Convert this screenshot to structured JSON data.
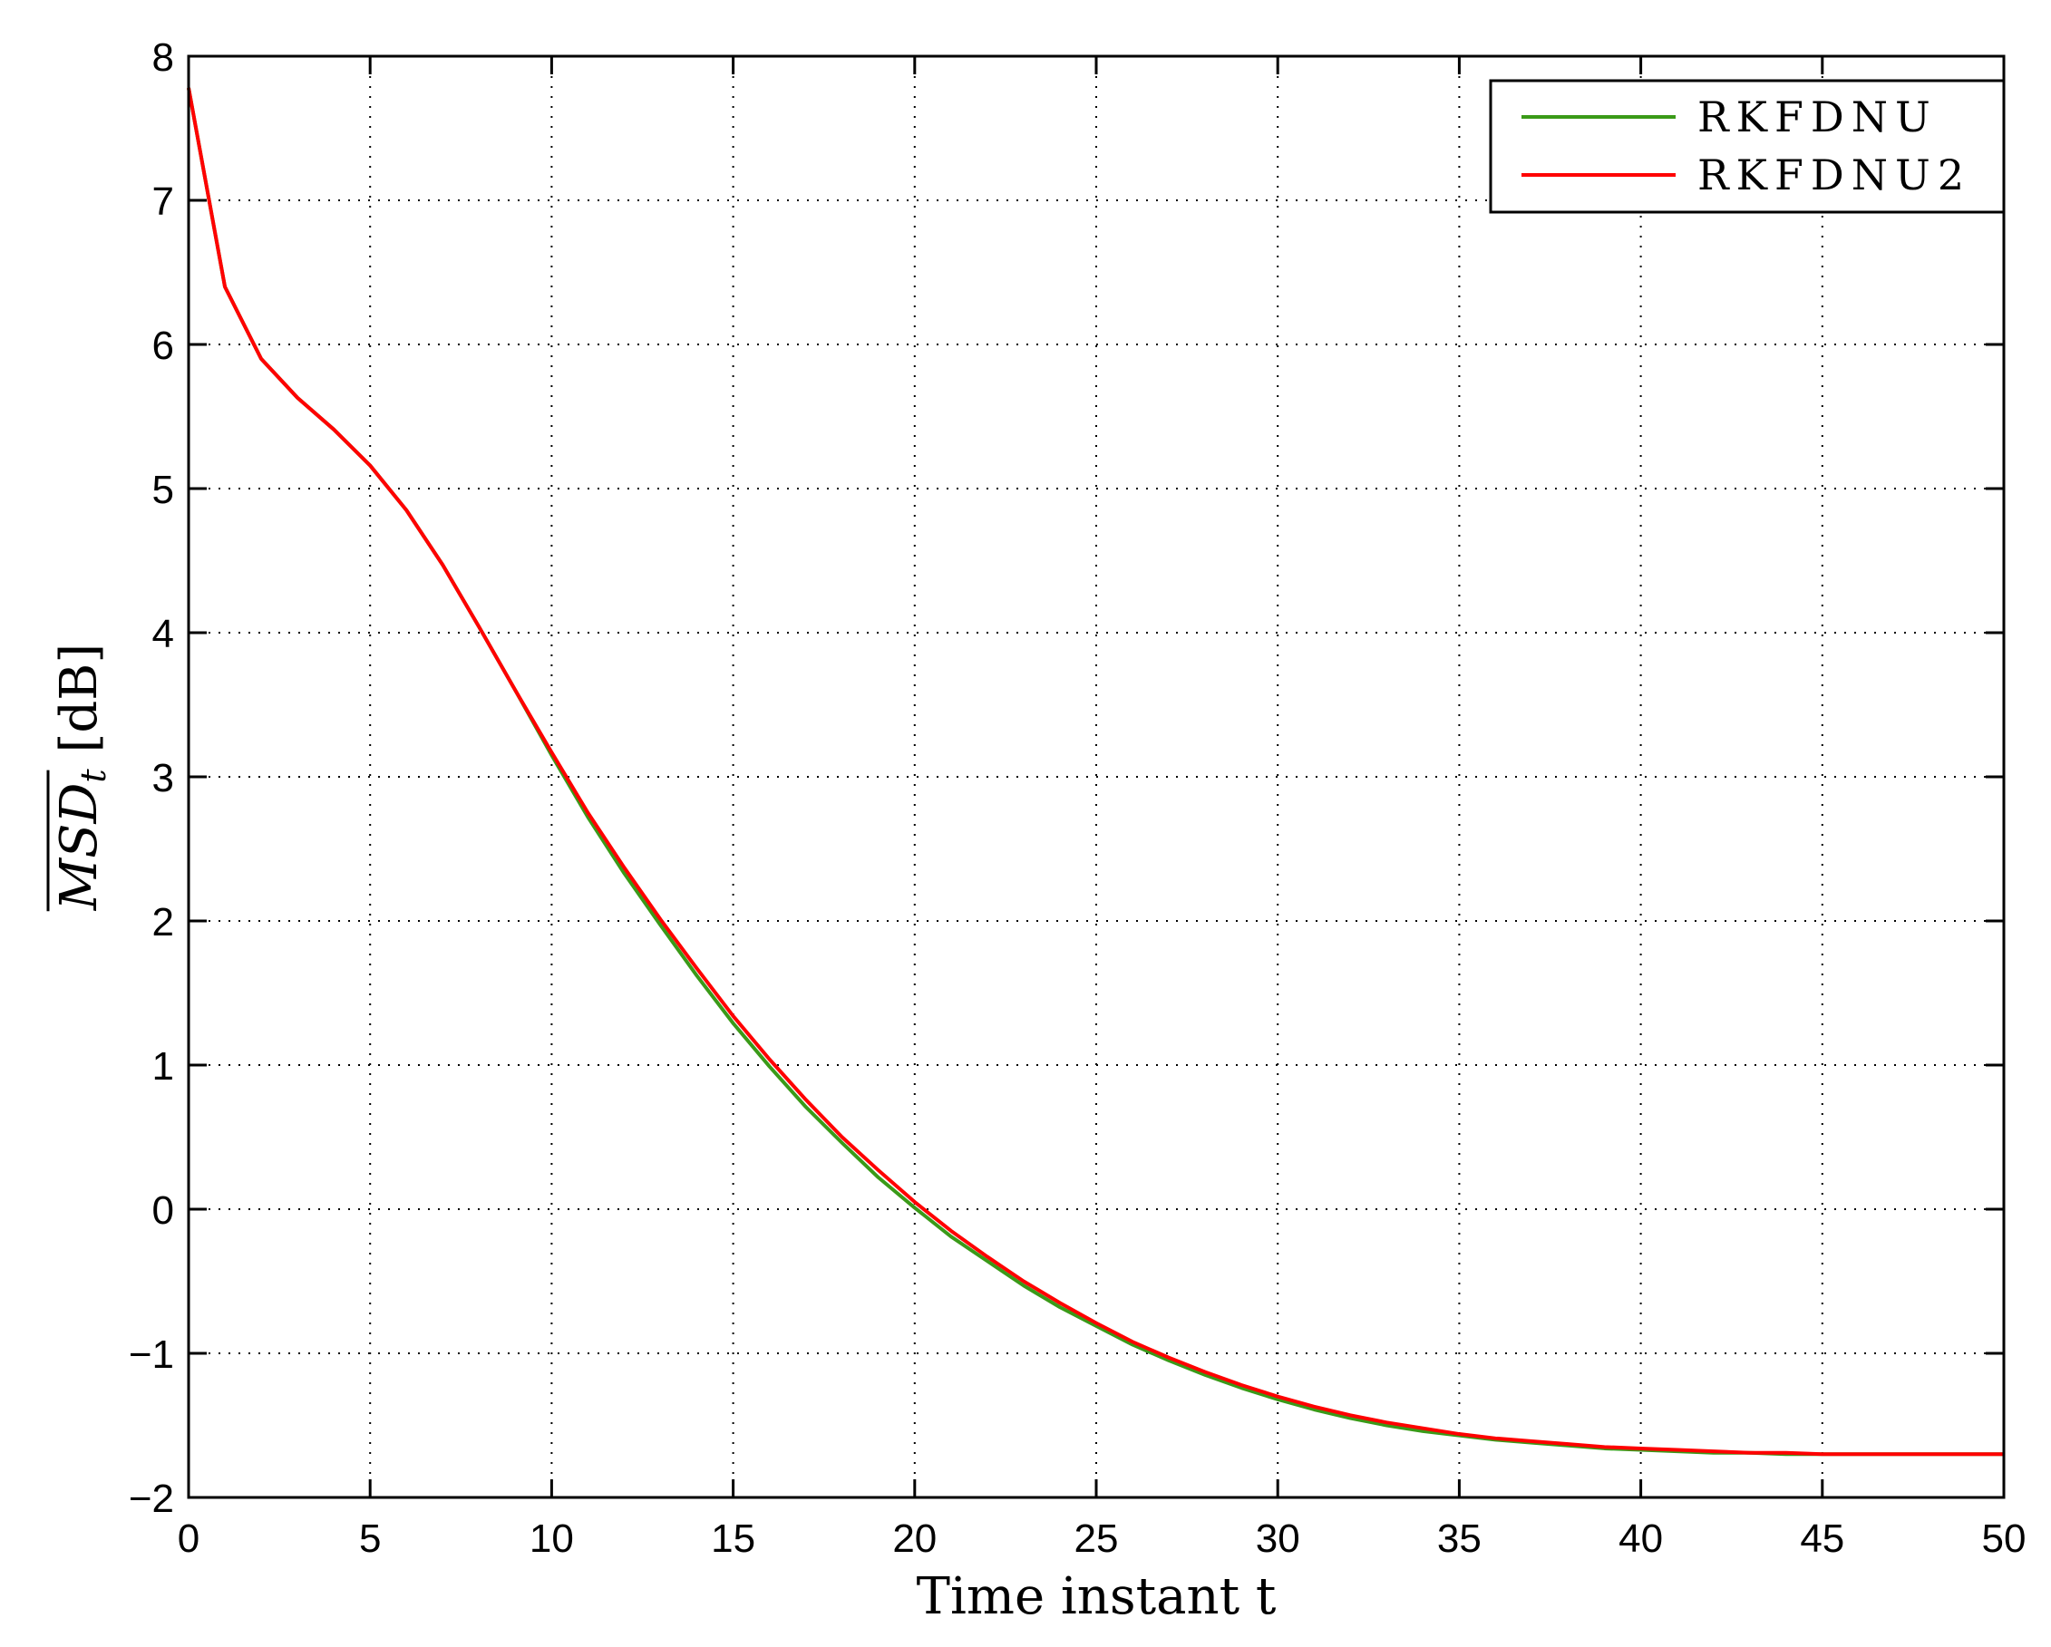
{
  "chart_data": {
    "type": "line",
    "title": "",
    "xlabel": "Time instant t",
    "ylabel": "MSD_t [dB]",
    "xlim": [
      0,
      50
    ],
    "ylim": [
      -2,
      8
    ],
    "xticks": [
      "0",
      "5",
      "10",
      "15",
      "20",
      "25",
      "30",
      "35",
      "40",
      "45",
      "50"
    ],
    "yticks": [
      "8",
      "7",
      "6",
      "5",
      "4",
      "3",
      "2",
      "1",
      "0",
      "−1",
      "−2"
    ],
    "grid": true,
    "legend_position": "top-right",
    "colors": {
      "RKFDNU": "#3a9a18",
      "RKFDNU2": "#ff0000"
    },
    "x": [
      0,
      1,
      2,
      3,
      4,
      5,
      6,
      7,
      8,
      9,
      10,
      11,
      12,
      13,
      14,
      15,
      16,
      17,
      18,
      19,
      20,
      21,
      22,
      23,
      24,
      25,
      26,
      27,
      28,
      29,
      30,
      31,
      32,
      33,
      34,
      35,
      36,
      37,
      38,
      39,
      40,
      41,
      42,
      43,
      44,
      45,
      46,
      47,
      48,
      49,
      50
    ],
    "series": [
      {
        "name": "RKFDNU",
        "values": [
          7.78,
          6.4,
          5.9,
          5.63,
          5.41,
          5.16,
          4.85,
          4.47,
          4.04,
          3.6,
          3.15,
          2.72,
          2.33,
          1.97,
          1.62,
          1.29,
          0.99,
          0.71,
          0.46,
          0.22,
          0.01,
          -0.19,
          -0.36,
          -0.53,
          -0.68,
          -0.81,
          -0.94,
          -1.05,
          -1.15,
          -1.24,
          -1.32,
          -1.39,
          -1.45,
          -1.5,
          -1.54,
          -1.57,
          -1.6,
          -1.62,
          -1.64,
          -1.66,
          -1.67,
          -1.68,
          -1.69,
          -1.69,
          -1.7,
          -1.7,
          -1.7,
          -1.7,
          -1.7,
          -1.7,
          -1.7
        ]
      },
      {
        "name": "RKFDNU2",
        "values": [
          7.78,
          6.4,
          5.9,
          5.63,
          5.41,
          5.16,
          4.85,
          4.47,
          4.04,
          3.6,
          3.17,
          2.75,
          2.37,
          2.01,
          1.67,
          1.34,
          1.04,
          0.76,
          0.5,
          0.27,
          0.05,
          -0.15,
          -0.33,
          -0.5,
          -0.65,
          -0.79,
          -0.92,
          -1.03,
          -1.13,
          -1.22,
          -1.3,
          -1.37,
          -1.43,
          -1.48,
          -1.52,
          -1.56,
          -1.59,
          -1.61,
          -1.63,
          -1.65,
          -1.66,
          -1.67,
          -1.68,
          -1.69,
          -1.69,
          -1.7,
          -1.7,
          -1.7,
          -1.7,
          -1.7,
          -1.7
        ]
      }
    ]
  }
}
